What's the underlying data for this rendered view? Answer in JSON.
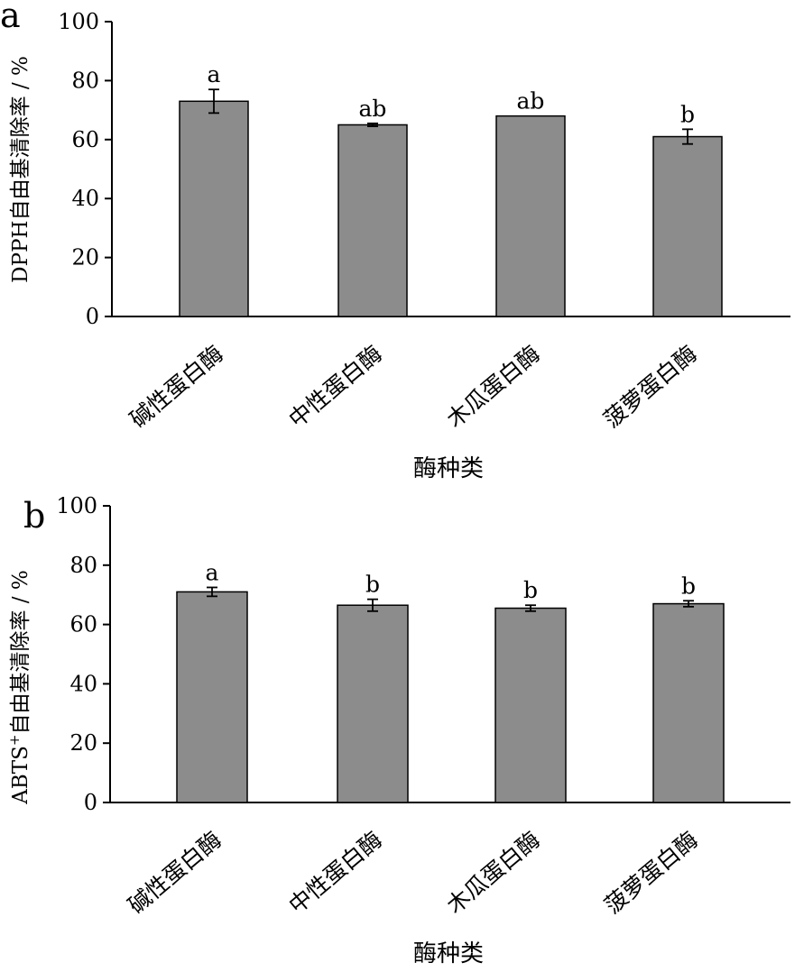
{
  "chart_data": [
    {
      "type": "bar",
      "panel_label": "a",
      "categories": [
        "碱性蛋白酶",
        "中性蛋白酶",
        "木瓜蛋白酶",
        "菠萝蛋白酶"
      ],
      "values": [
        73,
        65,
        68,
        61
      ],
      "errors": [
        4,
        0.5,
        0,
        2.5
      ],
      "significance": [
        "a",
        "ab",
        "ab",
        "b"
      ],
      "xlabel": "酶种类",
      "ylabel": "DPPH自由基清除率 / %",
      "ylim": [
        0,
        100
      ],
      "yticks": [
        "0",
        "20",
        "40",
        "60",
        "80",
        "100"
      ],
      "bar_color": "#8c8c8c",
      "grid": false,
      "legend": "none"
    },
    {
      "type": "bar",
      "panel_label": "b",
      "categories": [
        "碱性蛋白酶",
        "中性蛋白酶",
        "木瓜蛋白酶",
        "菠萝蛋白酶"
      ],
      "values": [
        71,
        66.5,
        65.5,
        67
      ],
      "errors": [
        1.5,
        2,
        1,
        1
      ],
      "significance": [
        "a",
        "b",
        "b",
        "b"
      ],
      "xlabel": "酶种类",
      "ylabel_main": "ABTS",
      "ylabel_sup": "+",
      "ylabel_rest": "自由基清除率 / %",
      "ylim": [
        0,
        100
      ],
      "yticks": [
        "0",
        "20",
        "40",
        "60",
        "80",
        "100"
      ],
      "bar_color": "#8c8c8c",
      "grid": false,
      "legend": "none"
    }
  ]
}
